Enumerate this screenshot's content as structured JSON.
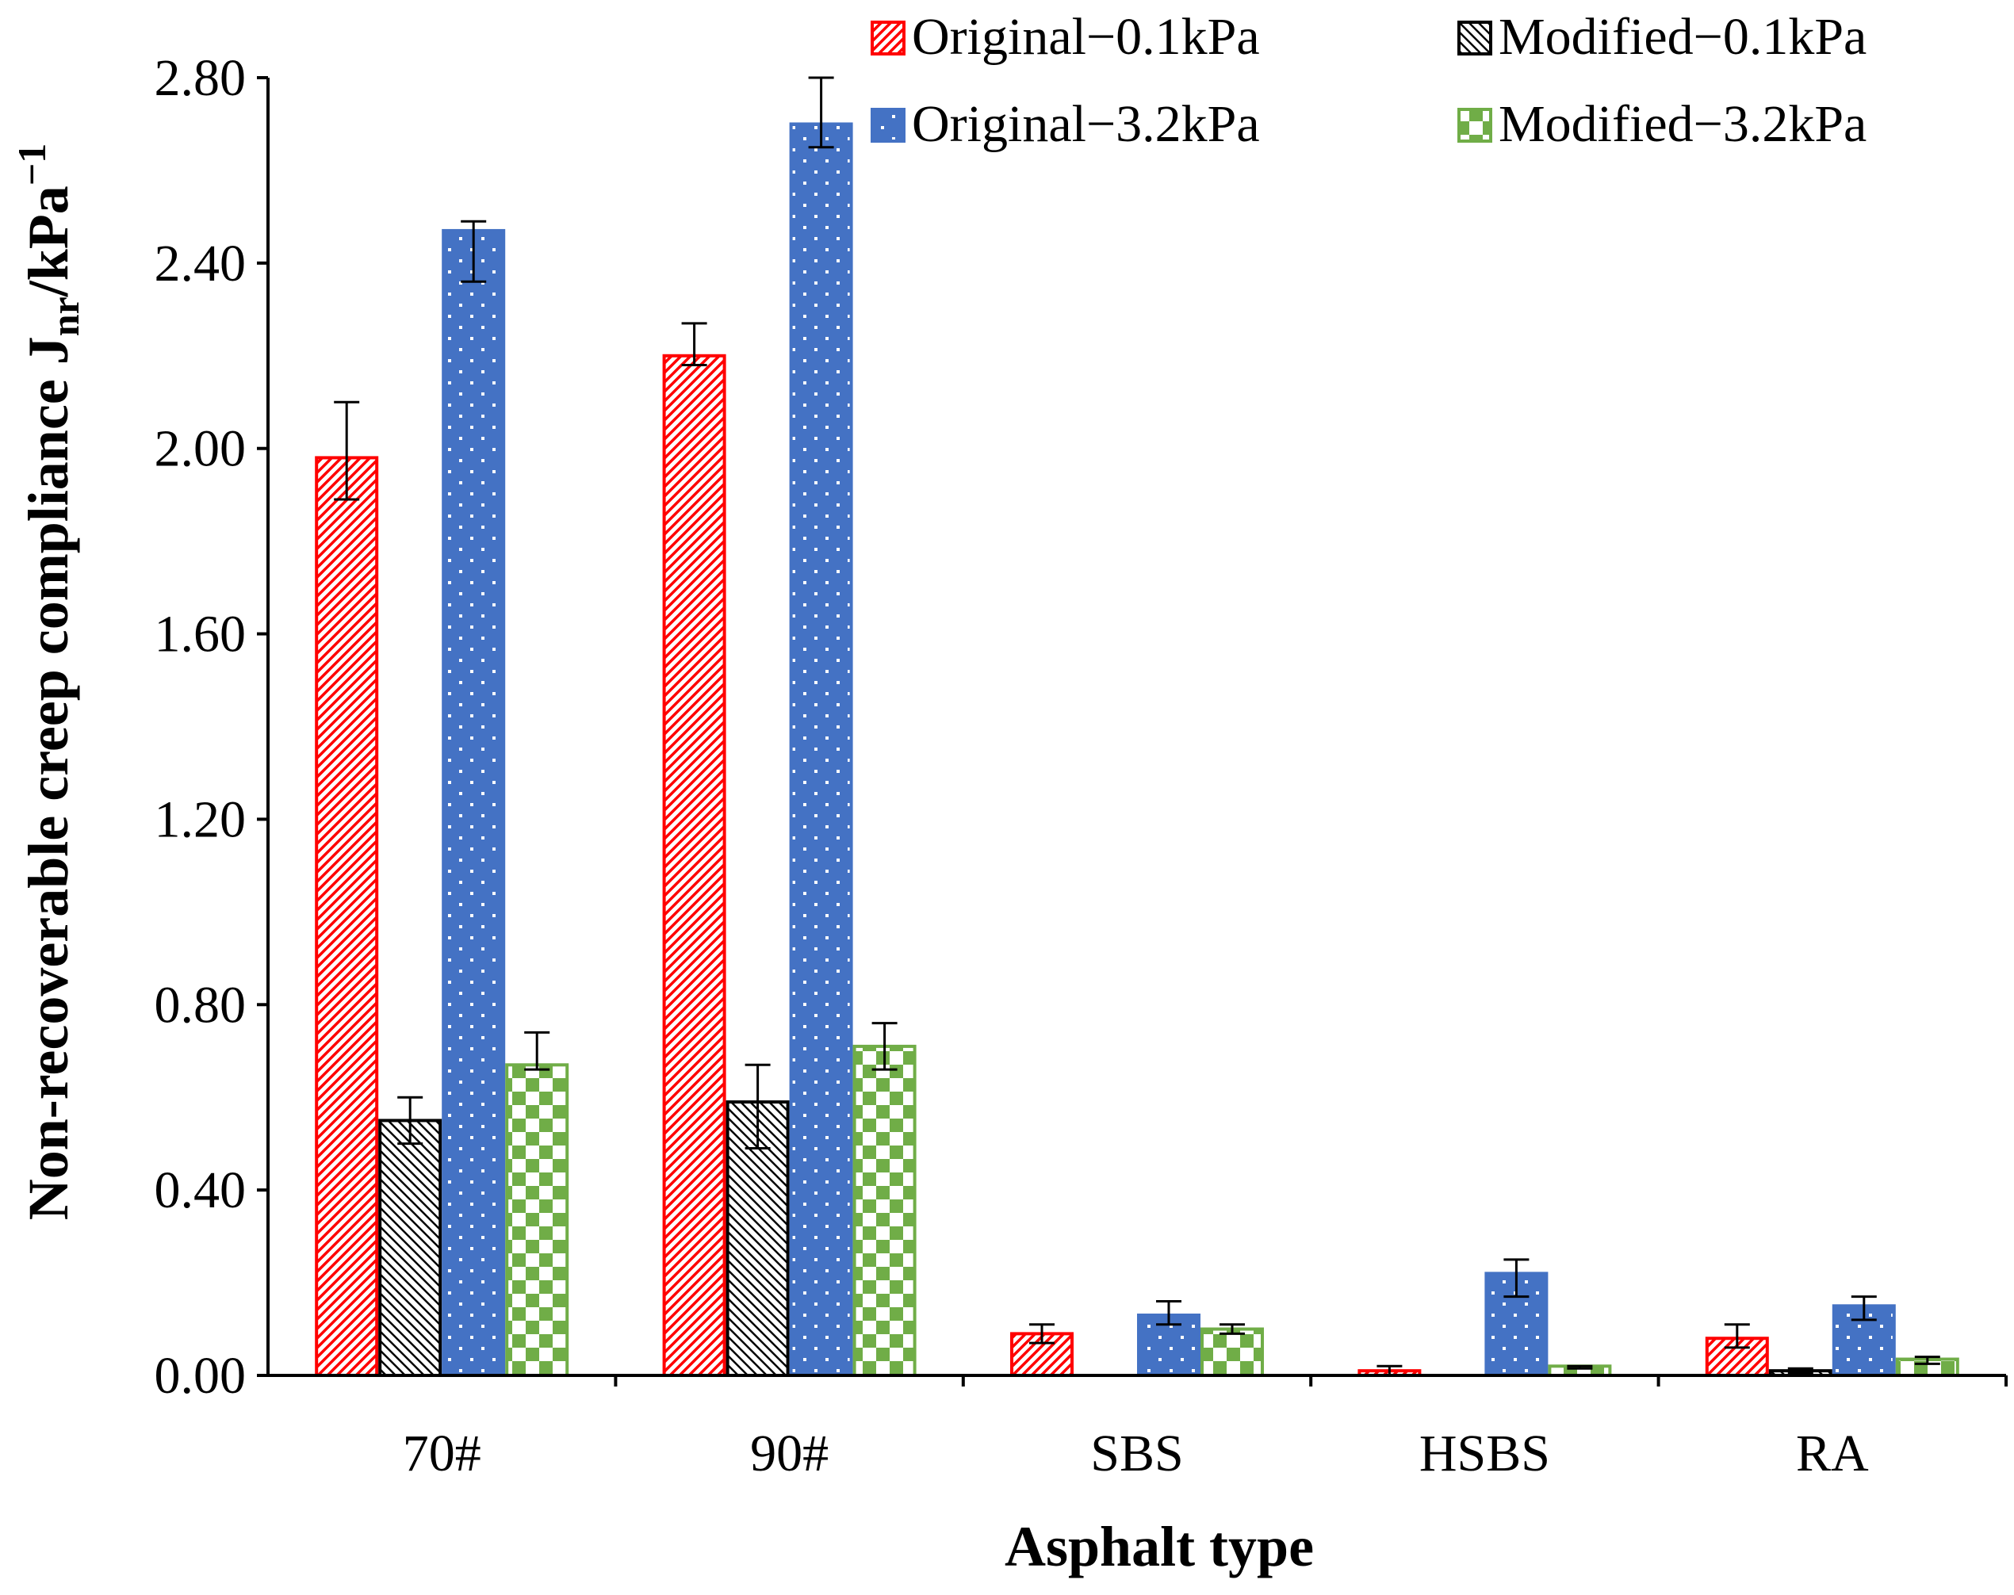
{
  "chart_data": {
    "type": "bar",
    "title": "",
    "xlabel": "Asphalt type",
    "ylabel": {
      "main": "Non-recoverable creep compliance J",
      "subscript": "nr",
      "unit": "/kPa",
      "superscript": "−1"
    },
    "ylim": [
      0,
      2.8
    ],
    "yticks": [
      0.0,
      0.4,
      0.8,
      1.2,
      1.6,
      2.0,
      2.4,
      2.8
    ],
    "ytick_labels": [
      "0.00",
      "0.40",
      "0.80",
      "1.20",
      "1.60",
      "2.00",
      "2.40",
      "2.80"
    ],
    "grid": false,
    "legend_position": "top-right",
    "categories": [
      "70#",
      "90#",
      "SBS",
      "HSBS",
      "RA"
    ],
    "series": [
      {
        "name": "Original−0.1kPa",
        "color": "#ff0000",
        "pattern": "diagonal-hatch",
        "values": [
          1.98,
          2.2,
          0.09,
          0.01,
          0.08
        ],
        "error_low": [
          1.89,
          2.18,
          0.07,
          0.0,
          0.06
        ],
        "error_high": [
          2.1,
          2.27,
          0.11,
          0.02,
          0.11
        ]
      },
      {
        "name": "Modified−0.1kPa",
        "color": "#000000",
        "pattern": "cross-hatch",
        "values": [
          0.55,
          0.59,
          0.0,
          0.0,
          0.01
        ],
        "error_low": [
          0.5,
          0.49,
          null,
          null,
          0.005
        ],
        "error_high": [
          0.6,
          0.67,
          null,
          null,
          0.015
        ]
      },
      {
        "name": "Original−3.2kPa",
        "color": "#4472c4",
        "pattern": "dots",
        "values": [
          2.47,
          2.7,
          0.13,
          0.22,
          0.15
        ],
        "error_low": [
          2.36,
          2.65,
          0.11,
          0.17,
          0.12
        ],
        "error_high": [
          2.49,
          2.8,
          0.16,
          0.25,
          0.17
        ]
      },
      {
        "name": "Modified−3.2kPa",
        "color": "#70ad47",
        "pattern": "checkerboard",
        "values": [
          0.67,
          0.71,
          0.1,
          0.02,
          0.035
        ],
        "error_low": [
          0.66,
          0.66,
          0.09,
          0.015,
          0.025
        ],
        "error_high": [
          0.74,
          0.76,
          0.11,
          0.02,
          0.04
        ]
      }
    ]
  }
}
